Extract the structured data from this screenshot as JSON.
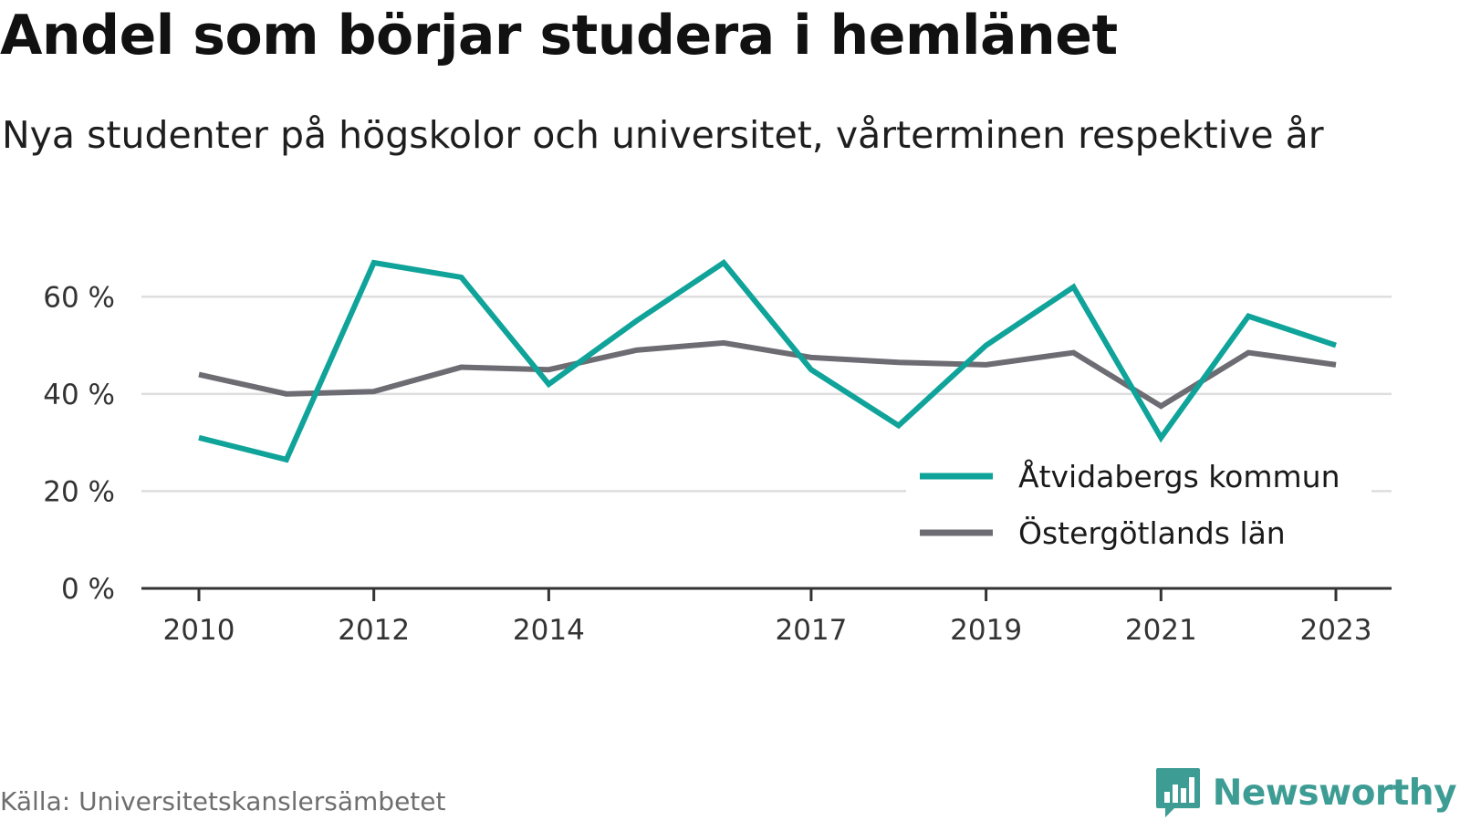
{
  "title": "Andel som börjar studera i hemlänet",
  "subtitle": "Nya studenter på högskolor och universitet, vårterminen respektive år",
  "source": "Källa: Universitetskanslersämbetet",
  "brand": {
    "name": "Newsworthy",
    "icon": "newsworthy-logo-icon",
    "color": "#3d9c93"
  },
  "chart_data": {
    "type": "line",
    "x": [
      2010,
      2011,
      2012,
      2013,
      2014,
      2015,
      2016,
      2017,
      2018,
      2019,
      2020,
      2021,
      2022,
      2023
    ],
    "xticks": [
      2010,
      2012,
      2014,
      2017,
      2019,
      2021,
      2023
    ],
    "xtick_labels": [
      "2010",
      "2012",
      "2014",
      "2017",
      "2019",
      "2021",
      "2023"
    ],
    "yticks": [
      0,
      20,
      40,
      60
    ],
    "ytick_labels": [
      "0 %",
      "20 %",
      "40 %",
      "60 %"
    ],
    "ylim": [
      0,
      70
    ],
    "grid": true,
    "legend_position": "bottom-right",
    "series": [
      {
        "name": "Åtvidabergs kommun",
        "color": "#0fa39a",
        "values": [
          31,
          26.5,
          67,
          64,
          42,
          55,
          67,
          45,
          33.5,
          50,
          62,
          31,
          56,
          50
        ]
      },
      {
        "name": "Östergötlands län",
        "color": "#6d6c73",
        "values": [
          44,
          40,
          40.5,
          45.5,
          45,
          49,
          50.5,
          47.5,
          46.5,
          46,
          48.5,
          37.5,
          48.5,
          46
        ]
      }
    ]
  }
}
